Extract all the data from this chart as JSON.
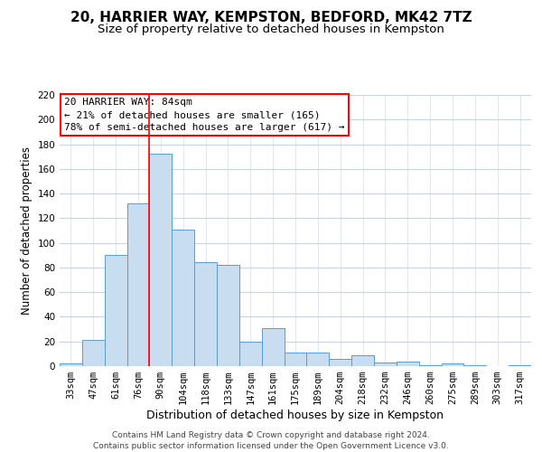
{
  "title": "20, HARRIER WAY, KEMPSTON, BEDFORD, MK42 7TZ",
  "subtitle": "Size of property relative to detached houses in Kempston",
  "xlabel": "Distribution of detached houses by size in Kempston",
  "ylabel": "Number of detached properties",
  "categories": [
    "33sqm",
    "47sqm",
    "61sqm",
    "76sqm",
    "90sqm",
    "104sqm",
    "118sqm",
    "133sqm",
    "147sqm",
    "161sqm",
    "175sqm",
    "189sqm",
    "204sqm",
    "218sqm",
    "232sqm",
    "246sqm",
    "260sqm",
    "275sqm",
    "289sqm",
    "303sqm",
    "317sqm"
  ],
  "values": [
    2,
    21,
    90,
    132,
    172,
    111,
    84,
    82,
    20,
    31,
    11,
    11,
    6,
    9,
    3,
    4,
    1,
    2,
    1,
    0,
    1
  ],
  "bar_color": "#c9ddf0",
  "bar_edge_color": "#5b9bd5",
  "ylim": [
    0,
    220
  ],
  "yticks": [
    0,
    20,
    40,
    60,
    80,
    100,
    120,
    140,
    160,
    180,
    200,
    220
  ],
  "red_line_x": 3.5,
  "annotation_box_text_line1": "20 HARRIER WAY: 84sqm",
  "annotation_box_text_line2": "← 21% of detached houses are smaller (165)",
  "annotation_box_text_line3": "78% of semi-detached houses are larger (617) →",
  "footer_line1": "Contains HM Land Registry data © Crown copyright and database right 2024.",
  "footer_line2": "Contains public sector information licensed under the Open Government Licence v3.0.",
  "background_color": "#ffffff",
  "grid_color": "#c8d4e3",
  "title_fontsize": 11,
  "subtitle_fontsize": 9.5,
  "xlabel_fontsize": 9,
  "ylabel_fontsize": 8.5,
  "tick_fontsize": 7.5,
  "footer_fontsize": 6.5,
  "ann_fontsize": 8
}
